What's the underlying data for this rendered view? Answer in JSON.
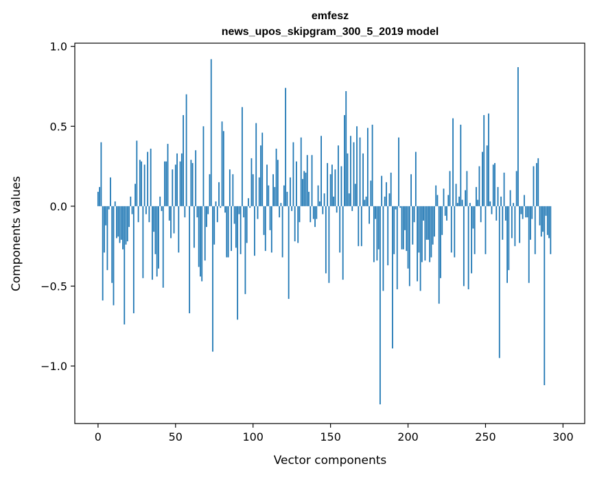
{
  "chart_data": {
    "type": "bar",
    "title": "emfesz",
    "subtitle": "news_upos_skipgram_300_5_2019 model",
    "xlabel": "Vector components",
    "ylabel": "Components values",
    "xlim": [
      -15,
      314
    ],
    "ylim": [
      -1.36,
      1.02
    ],
    "x_ticks": [
      0,
      50,
      100,
      150,
      200,
      250,
      300
    ],
    "x_tick_labels": [
      "0",
      "50",
      "100",
      "150",
      "200",
      "250",
      "300"
    ],
    "y_ticks": [
      -1.0,
      -0.5,
      0.0,
      0.5,
      1.0
    ],
    "y_tick_labels": [
      "−1.0",
      "−0.5",
      "0.0",
      "0.5",
      "1.0"
    ],
    "bar_color": "#1f77b4",
    "values": [
      0.09,
      0.12,
      0.4,
      -0.59,
      -0.29,
      -0.12,
      -0.4,
      -0.02,
      0.18,
      -0.48,
      -0.62,
      0.03,
      -0.2,
      -0.19,
      -0.23,
      -0.21,
      -0.27,
      -0.74,
      -0.24,
      -0.22,
      -0.13,
      0.06,
      -0.05,
      -0.67,
      0.14,
      0.41,
      -0.1,
      0.29,
      0.28,
      -0.45,
      0.26,
      -0.05,
      0.34,
      -0.1,
      0.36,
      -0.46,
      -0.16,
      -0.3,
      -0.44,
      -0.39,
      0.06,
      -0.03,
      -0.51,
      0.28,
      0.28,
      0.39,
      -0.09,
      -0.2,
      0.23,
      -0.17,
      0.26,
      0.33,
      -0.29,
      0.28,
      0.33,
      0.57,
      -0.07,
      0.7,
      0.0,
      -0.67,
      0.29,
      0.27,
      -0.26,
      0.35,
      -0.07,
      -0.38,
      -0.44,
      -0.47,
      0.5,
      -0.34,
      -0.13,
      -0.05,
      0.2,
      0.92,
      -0.91,
      -0.24,
      0.03,
      -0.1,
      0.15,
      -0.01,
      0.53,
      0.47,
      -0.04,
      -0.32,
      -0.32,
      0.23,
      -0.28,
      0.2,
      -0.11,
      -0.26,
      -0.71,
      -0.05,
      -0.3,
      0.62,
      -0.07,
      -0.55,
      -0.23,
      0.05,
      -0.01,
      0.3,
      0.2,
      -0.31,
      0.52,
      -0.08,
      0.18,
      0.38,
      0.46,
      -0.18,
      -0.28,
      0.26,
      0.13,
      -0.15,
      -0.29,
      0.2,
      0.12,
      0.36,
      0.29,
      -0.07,
      0.02,
      -0.32,
      0.13,
      0.74,
      0.09,
      -0.58,
      0.18,
      -0.03,
      0.4,
      -0.22,
      0.28,
      -0.23,
      -0.1,
      0.43,
      0.17,
      0.22,
      0.21,
      0.32,
      0.09,
      -0.1,
      0.32,
      -0.08,
      -0.13,
      -0.08,
      0.13,
      0.03,
      0.44,
      -0.05,
      0.08,
      -0.42,
      0.27,
      -0.48,
      0.2,
      0.26,
      0.06,
      0.23,
      -0.04,
      0.38,
      -0.29,
      0.25,
      -0.46,
      0.57,
      0.72,
      0.33,
      0.08,
      0.44,
      -0.03,
      0.4,
      0.14,
      0.5,
      -0.25,
      0.43,
      -0.25,
      0.33,
      0.04,
      0.06,
      0.49,
      -0.11,
      0.16,
      0.51,
      -0.35,
      -0.08,
      -0.34,
      -0.27,
      -1.24,
      0.19,
      -0.53,
      0.06,
      0.15,
      -0.37,
      0.08,
      0.21,
      -0.89,
      -0.3,
      -0.02,
      -0.52,
      0.43,
      -0.01,
      -0.27,
      -0.27,
      -0.15,
      -0.28,
      -0.39,
      -0.5,
      0.2,
      -0.24,
      -0.1,
      0.34,
      -0.47,
      -0.29,
      -0.53,
      -0.35,
      -0.09,
      -0.34,
      -0.21,
      -0.21,
      -0.35,
      -0.32,
      -0.24,
      -0.19,
      0.13,
      0.07,
      -0.61,
      -0.45,
      -0.18,
      0.11,
      -0.06,
      -0.09,
      0.07,
      0.22,
      -0.29,
      0.55,
      -0.32,
      0.14,
      0.02,
      0.06,
      0.51,
      0.04,
      -0.5,
      0.1,
      0.22,
      -0.52,
      0.02,
      -0.42,
      -0.14,
      -0.3,
      0.12,
      0.04,
      0.25,
      -0.1,
      0.34,
      0.57,
      -0.3,
      0.38,
      0.58,
      0.03,
      -0.05,
      0.26,
      0.27,
      -0.09,
      0.12,
      -0.95,
      0.06,
      -0.21,
      0.21,
      -0.09,
      -0.48,
      -0.4,
      0.1,
      -0.2,
      0.02,
      -0.25,
      0.22,
      0.87,
      -0.23,
      -0.05,
      -0.08,
      0.07,
      -0.07,
      -0.07,
      -0.48,
      -0.21,
      -0.08,
      0.25,
      -0.3,
      0.27,
      0.3,
      -0.12,
      -0.19,
      -0.16,
      -1.12,
      -0.06,
      -0.18,
      -0.2,
      -0.3
    ]
  }
}
